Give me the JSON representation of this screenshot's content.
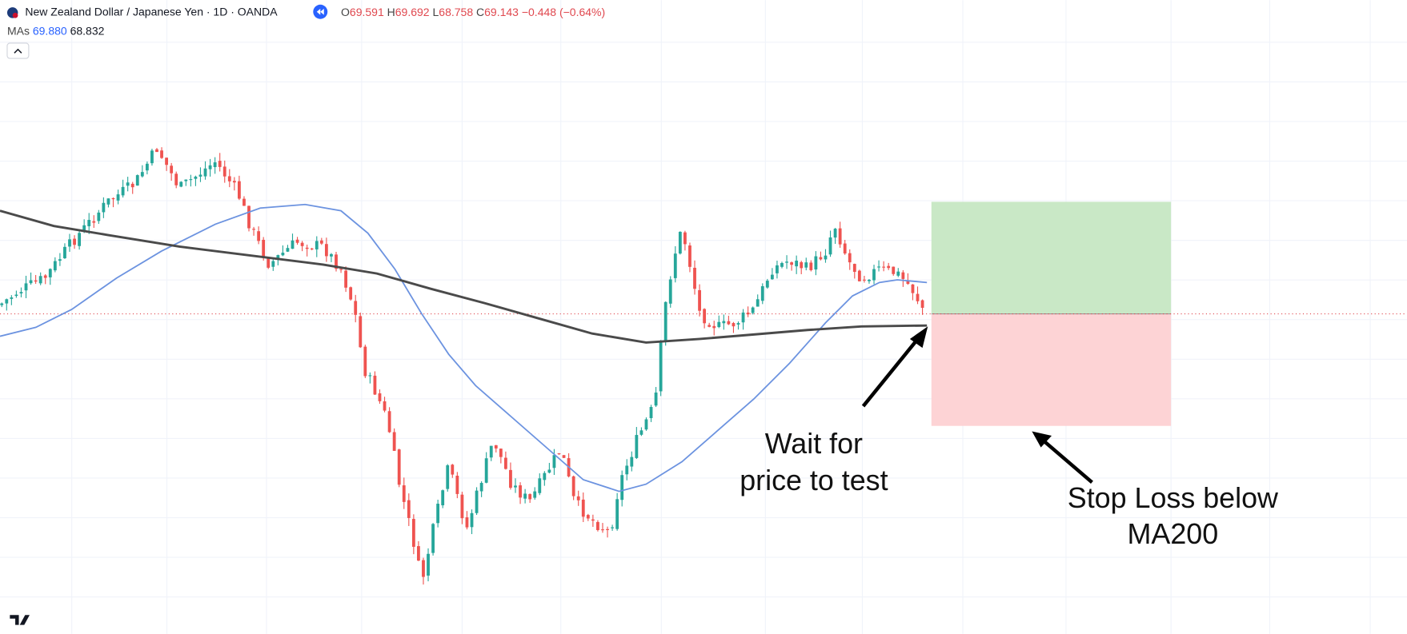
{
  "header": {
    "symbol": "New Zealand Dollar / Japanese Yen · 1D · OANDA",
    "ohlc": [
      {
        "label": "O",
        "value": "69.591"
      },
      {
        "label": "H",
        "value": "69.692"
      },
      {
        "label": "L",
        "value": "68.758"
      },
      {
        "label": "C",
        "value": "69.143"
      }
    ],
    "change": "−0.448 (−0.64%)",
    "indicator": "MAs",
    "ma_values": [
      "69.880",
      "68.832"
    ]
  },
  "annotations": [
    {
      "lines": [
        "Wait for",
        "price to test"
      ]
    },
    {
      "lines": [
        "Stop Loss below",
        "MA200"
      ]
    }
  ]
}
